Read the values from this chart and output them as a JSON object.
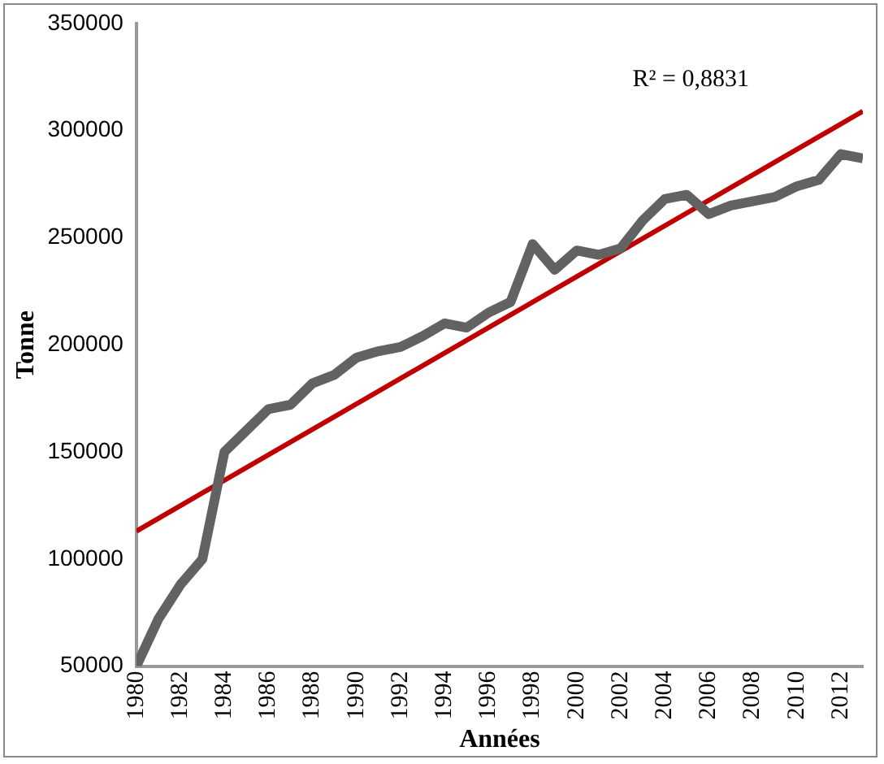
{
  "chart_data": {
    "type": "line",
    "xlabel": "Années",
    "ylabel": "Tonne",
    "annotations": [
      "R² = 0,8831"
    ],
    "x": [
      1980,
      1981,
      1982,
      1983,
      1984,
      1985,
      1986,
      1987,
      1988,
      1989,
      1990,
      1991,
      1992,
      1993,
      1994,
      1995,
      1996,
      1997,
      1998,
      1999,
      2000,
      2001,
      2002,
      2003,
      2004,
      2005,
      2006,
      2007,
      2008,
      2009,
      2010,
      2011,
      2012,
      2013
    ],
    "series": [
      {
        "color": "#626262",
        "values": [
          50000,
          72000,
          88000,
          100000,
          150000,
          160000,
          170000,
          172000,
          182000,
          186000,
          194000,
          197000,
          199000,
          204000,
          210000,
          208000,
          215000,
          220000,
          247000,
          235000,
          244000,
          242000,
          245000,
          258000,
          268000,
          270000,
          261000,
          265000,
          267000,
          269000,
          274000,
          277000,
          289000,
          287000
        ]
      },
      {
        "type": "line",
        "color": "#c00000",
        "x": [
          1980,
          2013
        ],
        "values": [
          113000,
          309000
        ]
      }
    ],
    "xlim": [
      1980,
      2013
    ],
    "xticks": [
      1980,
      1982,
      1984,
      1986,
      1988,
      1990,
      1992,
      1994,
      1996,
      1998,
      2000,
      2002,
      2004,
      2006,
      2008,
      2010,
      2012
    ],
    "ylim": [
      50000,
      350000
    ],
    "yticks": [
      50000,
      100000,
      150000,
      200000,
      250000,
      300000,
      350000
    ],
    "grid": false,
    "legend": false,
    "marker": "none",
    "line_style": "solid"
  }
}
